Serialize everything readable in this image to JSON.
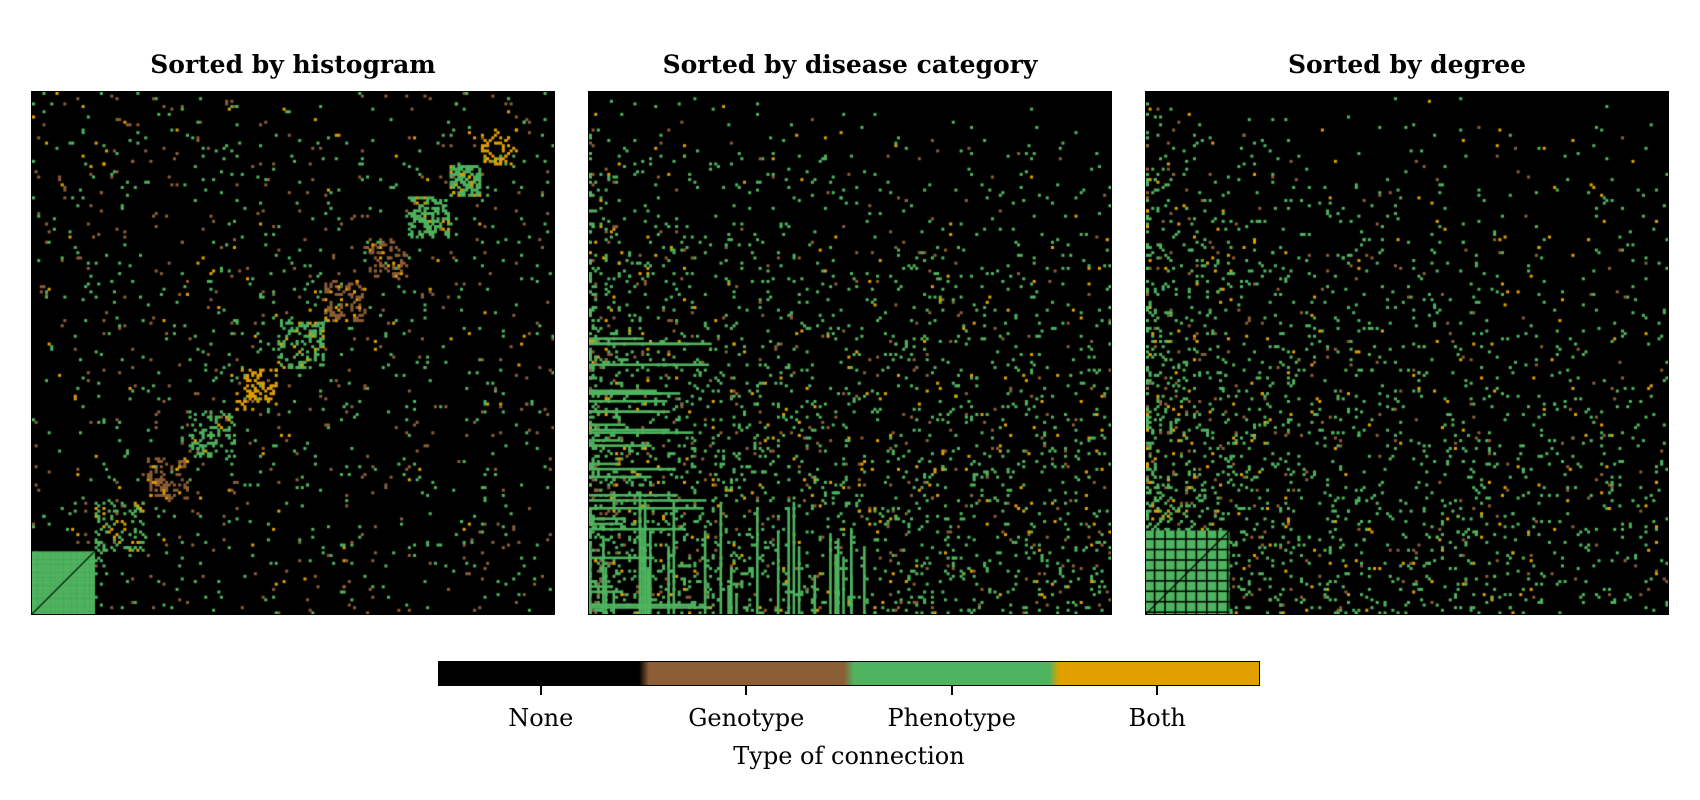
{
  "chart_data": {
    "type": "heatmap",
    "panels": [
      {
        "title": "Sorted by histogram"
      },
      {
        "title": "Sorted by disease category"
      },
      {
        "title": "Sorted by degree"
      }
    ],
    "colorbar": {
      "title": "Type of connection",
      "categories": [
        {
          "label": "None",
          "color": "#000000"
        },
        {
          "label": "Genotype",
          "color": "#8c5e36"
        },
        {
          "label": "Phenotype",
          "color": "#4fb45f"
        },
        {
          "label": "Both",
          "color": "#e0a000"
        }
      ]
    }
  }
}
